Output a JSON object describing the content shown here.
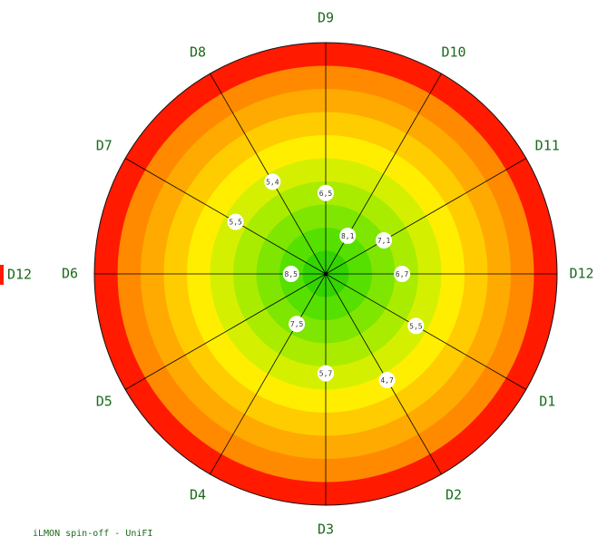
{
  "chart_data": {
    "type": "polar",
    "categories": [
      "D1",
      "D2",
      "D3",
      "D4",
      "D5",
      "D6",
      "D7",
      "D8",
      "D9",
      "D10",
      "D11",
      "D12"
    ],
    "values": [
      5.5,
      4.7,
      5.7,
      7.5,
      null,
      8.5,
      5.5,
      5.4,
      6.5,
      8.1,
      7.1,
      6.7
    ],
    "labels": [
      "5,5",
      "4,7",
      "5,7",
      "7,5",
      "",
      "8,5",
      "5,5",
      "5,4",
      "6,5",
      "8,1",
      "7,1",
      "6,7"
    ],
    "rlim": [
      0,
      10
    ],
    "bands": 10,
    "band_colors": [
      "#33d400",
      "#55e000",
      "#7ee600",
      "#aaec00",
      "#d4f000",
      "#ffee00",
      "#ffcc00",
      "#ffaa00",
      "#ff8a00",
      "#ff1a00"
    ],
    "partial_label": "D12"
  },
  "footer": "iLMON spin-off - UniFI"
}
